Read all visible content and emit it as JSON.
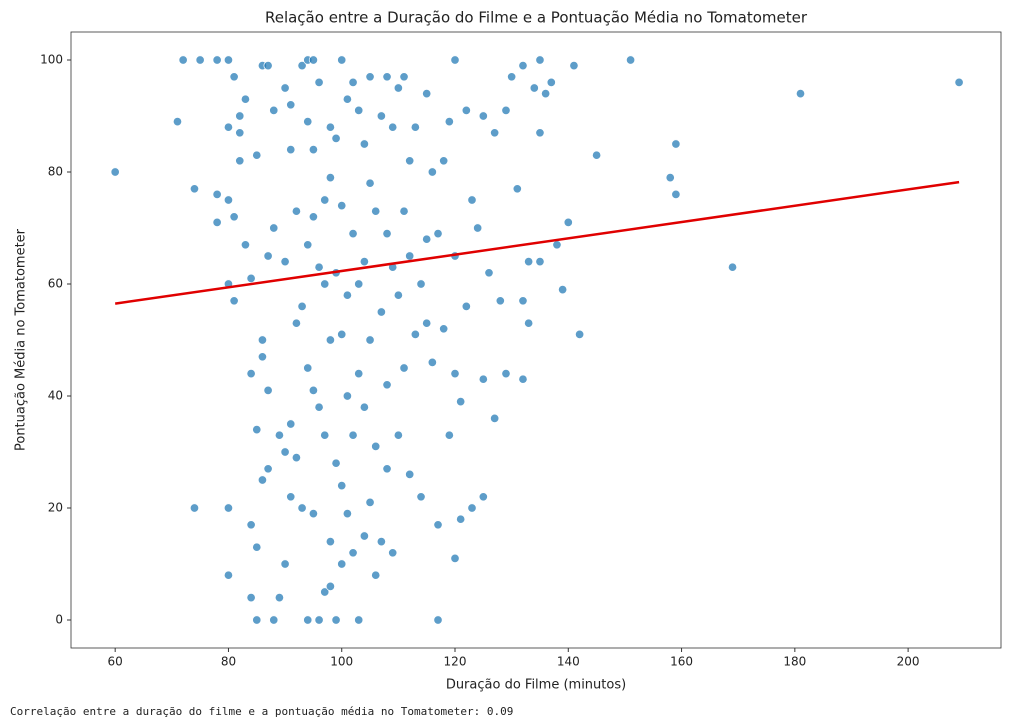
{
  "chart_data": {
    "type": "scatter",
    "title": "Relação entre a Duração do Filme e a Pontuação Média no Tomatometer",
    "x_label": "Duração do Filme (minutos)",
    "y_label": "Pontuação Média no Tomatometer",
    "color": "#1f77b4",
    "xlim": [
      52.2,
      216.4
    ],
    "ylim": [
      -5,
      105
    ],
    "xticks": [
      60,
      80,
      100,
      120,
      140,
      160,
      180,
      200
    ],
    "yticks": [
      0,
      20,
      40,
      60,
      80,
      100
    ],
    "x": [
      60,
      71,
      72,
      74,
      74,
      75,
      78,
      78,
      78,
      80,
      80,
      80,
      80,
      80,
      80,
      81,
      81,
      81,
      82,
      82,
      82,
      83,
      83,
      84,
      84,
      84,
      84,
      85,
      85,
      85,
      85,
      86,
      86,
      86,
      86,
      87,
      87,
      87,
      87,
      88,
      88,
      88,
      89,
      89,
      90,
      90,
      90,
      90,
      91,
      91,
      91,
      91,
      92,
      92,
      92,
      93,
      93,
      93,
      94,
      94,
      94,
      94,
      94,
      95,
      95,
      95,
      95,
      95,
      96,
      96,
      96,
      96,
      97,
      97,
      97,
      97,
      98,
      98,
      98,
      98,
      98,
      99,
      99,
      99,
      99,
      100,
      100,
      100,
      100,
      100,
      101,
      101,
      101,
      101,
      102,
      102,
      102,
      102,
      103,
      103,
      103,
      103,
      104,
      104,
      104,
      104,
      105,
      105,
      105,
      105,
      106,
      106,
      106,
      107,
      107,
      107,
      108,
      108,
      108,
      108,
      109,
      109,
      109,
      110,
      110,
      110,
      111,
      111,
      111,
      112,
      112,
      112,
      113,
      113,
      114,
      114,
      115,
      115,
      115,
      116,
      116,
      117,
      117,
      117,
      118,
      118,
      119,
      119,
      120,
      120,
      120,
      120,
      121,
      121,
      122,
      122,
      123,
      123,
      124,
      125,
      125,
      125,
      126,
      127,
      127,
      128,
      129,
      129,
      130,
      131,
      132,
      132,
      132,
      133,
      133,
      134,
      135,
      135,
      135,
      136,
      137,
      138,
      139,
      140,
      141,
      142,
      145,
      151,
      158,
      159,
      159,
      169,
      181,
      209
    ],
    "y": [
      80,
      89,
      100,
      77,
      20,
      100,
      100,
      76,
      71,
      100,
      88,
      75,
      60,
      20,
      8,
      97,
      72,
      57,
      90,
      82,
      87,
      93,
      67,
      61,
      44,
      17,
      4,
      83,
      34,
      13,
      0,
      99,
      25,
      47,
      50,
      99,
      65,
      41,
      27,
      91,
      70,
      0,
      4,
      33,
      95,
      64,
      10,
      30,
      92,
      84,
      35,
      22,
      73,
      53,
      29,
      99,
      56,
      20,
      100,
      89,
      67,
      45,
      0,
      100,
      84,
      72,
      41,
      19,
      96,
      63,
      38,
      0,
      33,
      60,
      75,
      5,
      88,
      79,
      50,
      14,
      6,
      86,
      62,
      28,
      0,
      100,
      74,
      51,
      24,
      10,
      93,
      58,
      40,
      19,
      96,
      69,
      33,
      12,
      91,
      60,
      44,
      0,
      85,
      64,
      38,
      15,
      97,
      78,
      50,
      21,
      73,
      8,
      31,
      90,
      55,
      14,
      97,
      69,
      42,
      27,
      88,
      63,
      12,
      95,
      58,
      33,
      97,
      73,
      45,
      82,
      65,
      26,
      88,
      51,
      60,
      22,
      94,
      68,
      53,
      80,
      46,
      69,
      0,
      17,
      82,
      52,
      33,
      89,
      100,
      65,
      44,
      11,
      39,
      18,
      91,
      56,
      75,
      20,
      70,
      90,
      43,
      22,
      62,
      87,
      36,
      57,
      91,
      44,
      97,
      77,
      99,
      57,
      43,
      64,
      53,
      95,
      100,
      87,
      64,
      94,
      96,
      67,
      59,
      71,
      99,
      51,
      83,
      100,
      79,
      85,
      76,
      63,
      94,
      96
    ],
    "trend": {
      "color": "#e00000",
      "x": [
        60,
        209
      ],
      "y": [
        56.5,
        78.2
      ]
    }
  },
  "console_output": "Correlação entre a duração do filme e a pontuação média no Tomatometer: 0.09"
}
